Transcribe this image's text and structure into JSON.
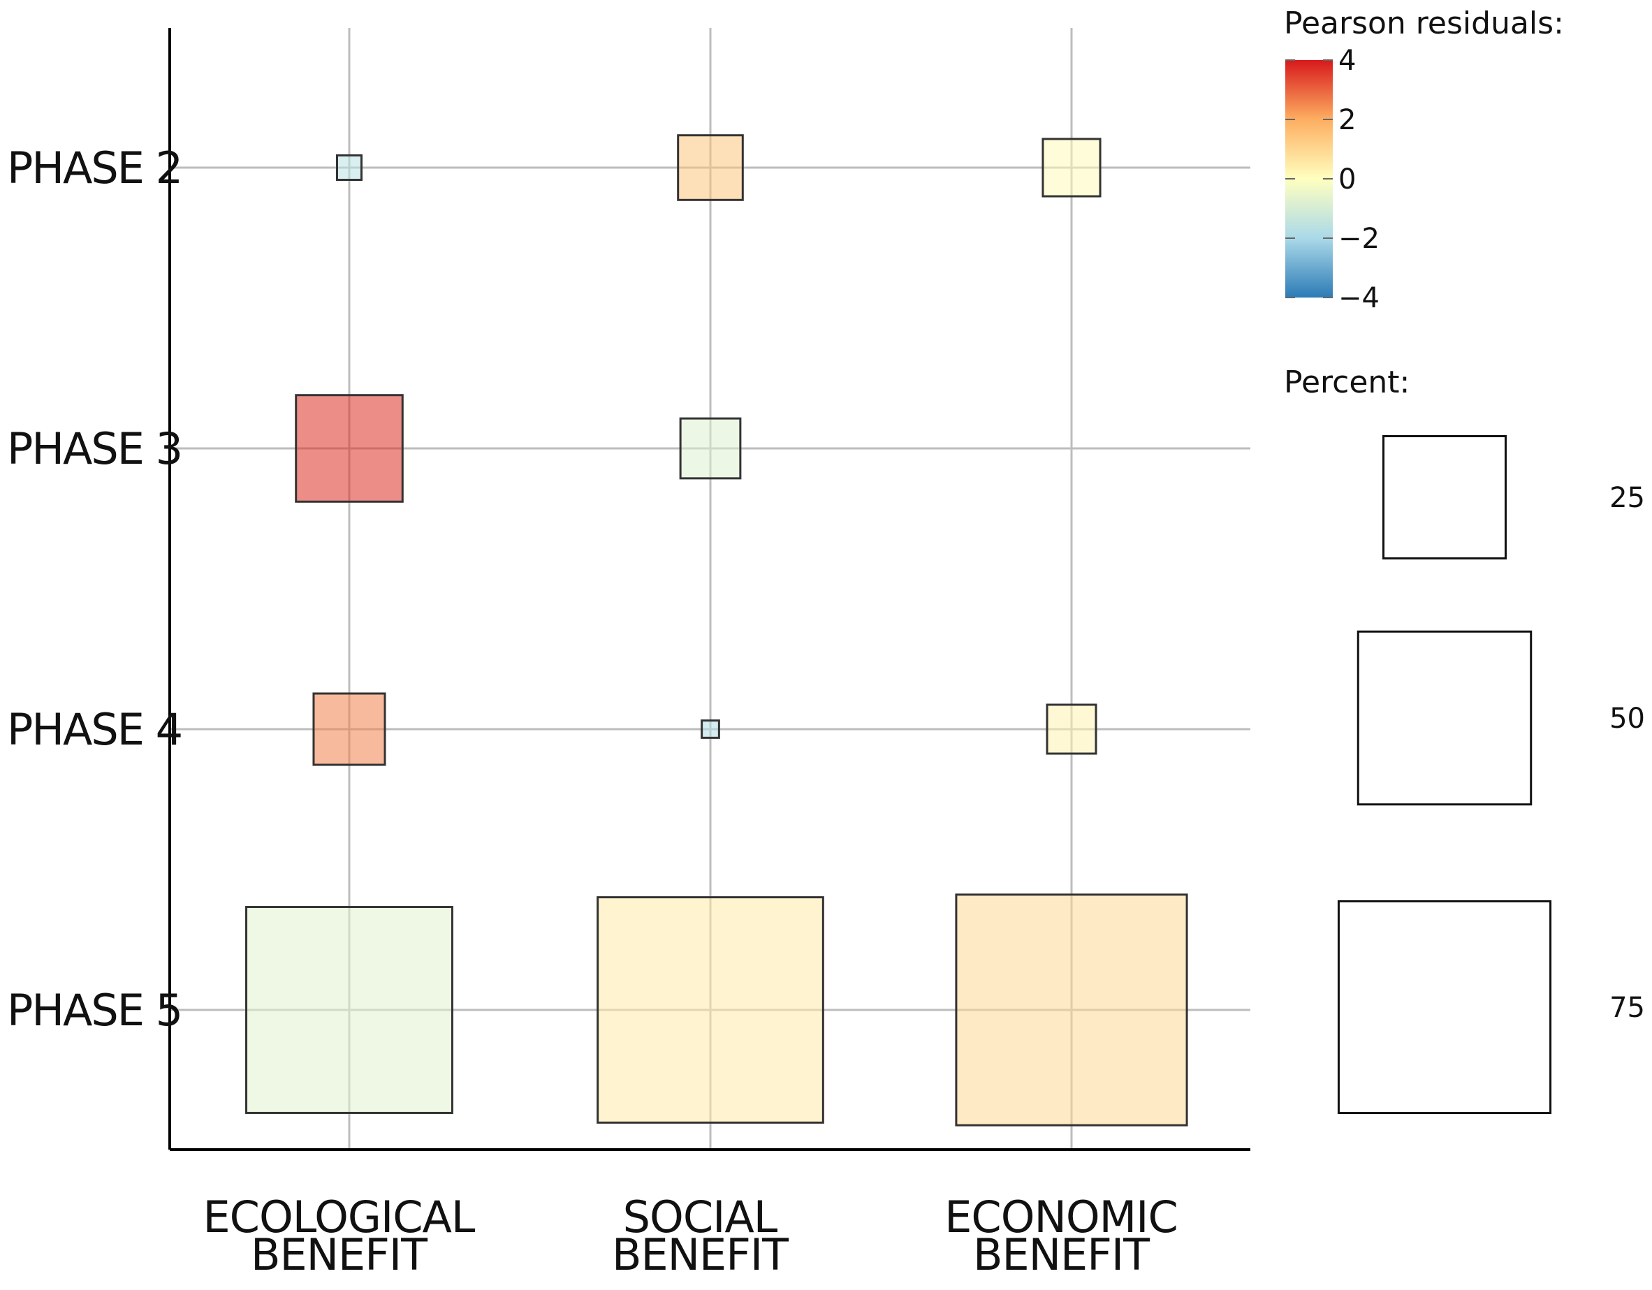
{
  "chart_data": {
    "type": "heatmap",
    "rows": [
      "PHASE 2",
      "PHASE 3",
      "PHASE 4",
      "PHASE 5"
    ],
    "columns": [
      {
        "line1": "ECOLOGICAL",
        "line2": "BENEFIT"
      },
      {
        "line1": "SOCIAL",
        "line2": "BENEFIT"
      },
      {
        "line1": "ECONOMIC",
        "line2": "BENEFIT"
      }
    ],
    "cells": [
      {
        "row": "PHASE 2",
        "col": 0,
        "percent": 1,
        "residual": -1.6
      },
      {
        "row": "PHASE 2",
        "col": 1,
        "percent": 7,
        "residual": 1.4
      },
      {
        "row": "PHASE 2",
        "col": 2,
        "percent": 5.5,
        "residual": 0.1
      },
      {
        "row": "PHASE 3",
        "col": 0,
        "percent": 19,
        "residual": 3.7
      },
      {
        "row": "PHASE 3",
        "col": 1,
        "percent": 6,
        "residual": -0.8
      },
      {
        "row": "PHASE 3",
        "col": 2,
        "percent": 0,
        "residual": 0
      },
      {
        "row": "PHASE 4",
        "col": 0,
        "percent": 8.5,
        "residual": 2.6
      },
      {
        "row": "PHASE 4",
        "col": 1,
        "percent": 0.5,
        "residual": -1.8
      },
      {
        "row": "PHASE 4",
        "col": 2,
        "percent": 4,
        "residual": 0.3
      },
      {
        "row": "PHASE 5",
        "col": 0,
        "percent": 71,
        "residual": -0.7
      },
      {
        "row": "PHASE 5",
        "col": 1,
        "percent": 85,
        "residual": 0.5
      },
      {
        "row": "PHASE 5",
        "col": 2,
        "percent": 89,
        "residual": 0.9
      }
    ],
    "color_legend": {
      "title": "Pearson residuals:",
      "range": [
        -4,
        4
      ],
      "ticks": [
        "4",
        "2",
        "0",
        "−2",
        "−4"
      ],
      "tick_values": [
        4,
        2,
        0,
        -2,
        -4
      ],
      "colors": [
        "#d7191c",
        "#fdae61",
        "#ffffbf",
        "#abd9e9",
        "#2c7bb6"
      ]
    },
    "size_legend": {
      "title": "Percent:",
      "values": [
        25,
        50,
        75
      ],
      "labels": [
        "25",
        "50",
        "75"
      ]
    },
    "grid": true
  }
}
